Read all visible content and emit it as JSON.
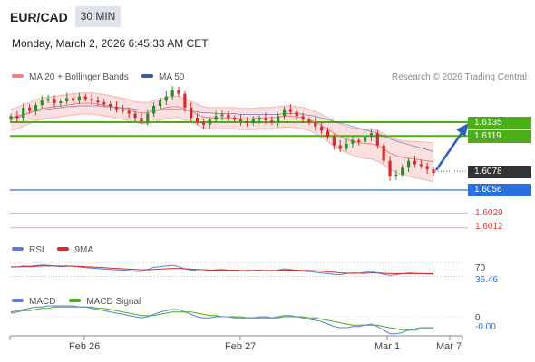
{
  "header": {
    "pair": "EUR/CAD",
    "timeframe": "30 MIN",
    "datetime": "Monday, March 2, 2026 6:45:33 AM CET"
  },
  "legend": {
    "ma20_label": "MA 20 + Bollinger Bands",
    "ma50_label": "MA 50",
    "credit": "Research © 2026 Trading Central",
    "ma20_color": "#f08080",
    "ma50_color": "#3b5998"
  },
  "colors": {
    "resistance": "#4caf1a",
    "current": "#333333",
    "pivot": "#2b6fdc",
    "support": "#e53935",
    "candle_up": "#2e8b2e",
    "candle_down": "#d22c2c",
    "band_fill": "#f9d6d6"
  },
  "chart_data": [
    {
      "type": "candlestick",
      "y_range": [
        1.6,
        1.621
      ],
      "x_ticks": [
        "Feb 26",
        "Feb 27",
        "Mar 1",
        "Mar 7"
      ],
      "current_price": "1.6078",
      "levels": [
        {
          "value": 1.6135,
          "label": "1.6135",
          "kind": "resistance"
        },
        {
          "value": 1.6119,
          "label": "1.6119",
          "kind": "resistance"
        },
        {
          "value": 1.6078,
          "label": "1.6078",
          "kind": "current"
        },
        {
          "value": 1.6056,
          "label": "1.6056",
          "kind": "pivot"
        },
        {
          "value": 1.6029,
          "label": "1.6029",
          "kind": "support"
        },
        {
          "value": 1.6012,
          "label": "1.6012",
          "kind": "support"
        }
      ],
      "close_path": [
        1.6142,
        1.614,
        1.6152,
        1.6148,
        1.6155,
        1.616,
        1.6162,
        1.6157,
        1.6159,
        1.6163,
        1.616,
        1.6165,
        1.6162,
        1.616,
        1.6158,
        1.6156,
        1.6153,
        1.615,
        1.6148,
        1.6145,
        1.614,
        1.6136,
        1.6145,
        1.6154,
        1.616,
        1.6165,
        1.6172,
        1.6168,
        1.6152,
        1.614,
        1.6135,
        1.6132,
        1.6138,
        1.6142,
        1.6144,
        1.614,
        1.6138,
        1.6136,
        1.6134,
        1.6138,
        1.614,
        1.6137,
        1.6135,
        1.6142,
        1.615,
        1.6147,
        1.6142,
        1.6138,
        1.6135,
        1.613,
        1.6125,
        1.6118,
        1.6108,
        1.6104,
        1.611,
        1.6114,
        1.6112,
        1.6118,
        1.6122,
        1.6108,
        1.609,
        1.6072,
        1.6074,
        1.6082,
        1.609,
        1.6086,
        1.6084,
        1.608,
        1.6076
      ],
      "ma20": [
        1.6138,
        1.614,
        1.6143,
        1.6146,
        1.6149,
        1.6151,
        1.6152,
        1.6153,
        1.6154,
        1.6155,
        1.6156,
        1.6157,
        1.6157,
        1.6157,
        1.6156,
        1.6155,
        1.6154,
        1.6152,
        1.6151,
        1.6149,
        1.6147,
        1.6146,
        1.6146,
        1.6148,
        1.615,
        1.6152,
        1.6153,
        1.6153,
        1.615,
        1.6147,
        1.6144,
        1.6141,
        1.614,
        1.614,
        1.614,
        1.614,
        1.614,
        1.6139,
        1.6139,
        1.6139,
        1.614,
        1.614,
        1.614,
        1.6141,
        1.6142,
        1.6142,
        1.6141,
        1.614,
        1.6138,
        1.6135,
        1.6131,
        1.6127,
        1.6122,
        1.6118,
        1.6115,
        1.6113,
        1.6111,
        1.611,
        1.611,
        1.6108,
        1.6104,
        1.6099,
        1.6096,
        1.6094,
        1.6093,
        1.6092,
        1.6091,
        1.609,
        1.6089
      ],
      "ma50": [
        1.614,
        1.6142,
        1.6144,
        1.6146,
        1.6148,
        1.6149,
        1.615,
        1.6151,
        1.6152,
        1.6153,
        1.6153,
        1.6154,
        1.6154,
        1.6154,
        1.6154,
        1.6153,
        1.6153,
        1.6152,
        1.6152,
        1.6151,
        1.615,
        1.6149,
        1.6149,
        1.6149,
        1.6149,
        1.615,
        1.615,
        1.615,
        1.6149,
        1.6148,
        1.6147,
        1.6146,
        1.6146,
        1.6145,
        1.6145,
        1.6145,
        1.6145,
        1.6144,
        1.6144,
        1.6144,
        1.6144,
        1.6144,
        1.6144,
        1.6144,
        1.6145,
        1.6145,
        1.6145,
        1.6144,
        1.6143,
        1.6142,
        1.614,
        1.6138,
        1.6136,
        1.6134,
        1.6132,
        1.613,
        1.6128,
        1.6126,
        1.6124,
        1.6122,
        1.6119,
        1.6116,
        1.6113,
        1.6111,
        1.6109,
        1.6107,
        1.6105,
        1.6103,
        1.6101
      ]
    },
    {
      "type": "line",
      "title": "RSI",
      "series_labels": [
        "RSI",
        "9MA"
      ],
      "level_label": "70",
      "value_label": "36.46",
      "rsi_color": "#5b7fd4",
      "ma_color": "#d22c2c",
      "rsi": [
        58,
        57,
        60,
        59,
        61,
        63,
        62,
        60,
        58,
        59,
        60,
        57,
        55,
        54,
        53,
        51,
        50,
        49,
        48,
        47,
        45,
        44,
        50,
        56,
        58,
        60,
        62,
        58,
        52,
        48,
        46,
        45,
        47,
        49,
        50,
        48,
        47,
        46,
        45,
        47,
        48,
        46,
        45,
        48,
        52,
        50,
        47,
        45,
        44,
        42,
        40,
        38,
        36,
        35,
        38,
        40,
        39,
        42,
        44,
        40,
        36,
        33,
        35,
        38,
        40,
        39,
        38,
        37,
        36.46
      ],
      "ma9": [
        57,
        57,
        58,
        58,
        59,
        60,
        60,
        60,
        60,
        60,
        59,
        59,
        58,
        57,
        56,
        55,
        54,
        53,
        52,
        51,
        50,
        49,
        49,
        50,
        51,
        52,
        53,
        53,
        52,
        51,
        50,
        49,
        48,
        48,
        48,
        48,
        48,
        47,
        47,
        47,
        47,
        47,
        47,
        47,
        48,
        48,
        48,
        47,
        47,
        46,
        45,
        43,
        42,
        40,
        39,
        39,
        39,
        39,
        40,
        40,
        39,
        38,
        38,
        38,
        38,
        38,
        38,
        38,
        38
      ]
    },
    {
      "type": "line",
      "title": "MACD",
      "series_labels": [
        "MACD",
        "MACD Signal"
      ],
      "zero_label": "0",
      "value_label": "-0.00",
      "macd_color": "#5b7fd4",
      "signal_color": "#4caf1a",
      "macd": [
        0.0004,
        0.0005,
        0.0006,
        0.0007,
        0.0008,
        0.0008,
        0.0009,
        0.0009,
        0.0009,
        0.0009,
        0.0009,
        0.0008,
        0.0008,
        0.0007,
        0.0006,
        0.0005,
        0.0004,
        0.0003,
        0.0002,
        0.0001,
        0.0,
        -0.0001,
        0.0,
        0.0002,
        0.0004,
        0.0005,
        0.0006,
        0.0006,
        0.0004,
        0.0002,
        0.0,
        -0.0001,
        -0.0001,
        0.0,
        0.0,
        0.0,
        -0.0001,
        -0.0001,
        -0.0001,
        -0.0001,
        0.0,
        0.0,
        -0.0001,
        0.0,
        0.0001,
        0.0001,
        0.0,
        -0.0001,
        -0.0002,
        -0.0003,
        -0.0004,
        -0.0006,
        -0.0008,
        -0.0009,
        -0.0009,
        -0.0008,
        -0.0008,
        -0.0007,
        -0.0006,
        -0.0008,
        -0.0011,
        -0.0014,
        -0.0014,
        -0.0013,
        -0.0011,
        -0.001,
        -0.0009,
        -0.0009,
        -0.0009
      ],
      "signal": [
        0.0003,
        0.0004,
        0.0005,
        0.0005,
        0.0006,
        0.0007,
        0.0007,
        0.0008,
        0.0008,
        0.0008,
        0.0008,
        0.0008,
        0.0008,
        0.0008,
        0.0007,
        0.0007,
        0.0006,
        0.0005,
        0.0004,
        0.0003,
        0.0002,
        0.0001,
        0.0001,
        0.0001,
        0.0002,
        0.0003,
        0.0004,
        0.0004,
        0.0004,
        0.0004,
        0.0003,
        0.0002,
        0.0001,
        0.0001,
        0.0,
        0.0,
        0.0,
        0.0,
        -0.0001,
        -0.0001,
        -0.0001,
        -0.0001,
        -0.0001,
        -0.0001,
        0.0,
        0.0,
        0.0,
        0.0,
        -0.0001,
        -0.0001,
        -0.0002,
        -0.0003,
        -0.0004,
        -0.0005,
        -0.0006,
        -0.0007,
        -0.0007,
        -0.0007,
        -0.0007,
        -0.0007,
        -0.0008,
        -0.0009,
        -0.001,
        -0.0011,
        -0.0011,
        -0.0011,
        -0.001,
        -0.001,
        -0.001
      ]
    }
  ]
}
